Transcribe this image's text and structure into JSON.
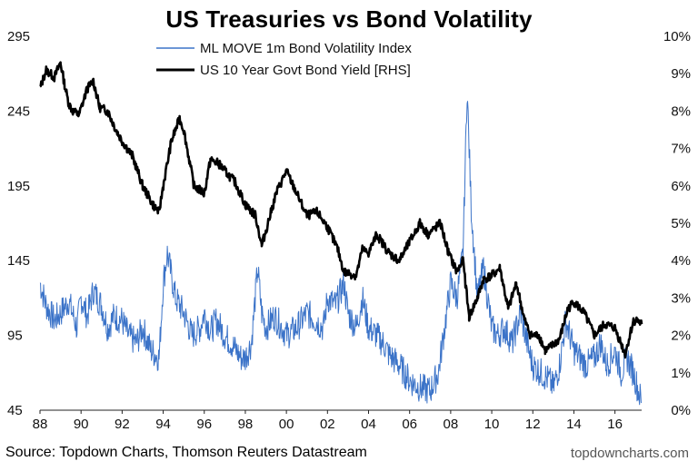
{
  "chart_data": {
    "type": "line",
    "title": "US Treasuries vs Bond Volatility",
    "x_ticks": [
      "88",
      "90",
      "92",
      "94",
      "96",
      "98",
      "00",
      "02",
      "04",
      "06",
      "08",
      "10",
      "12",
      "14",
      "16"
    ],
    "x_range": [
      1988,
      2017.3
    ],
    "y_left": {
      "ticks": [
        "295",
        "245",
        "195",
        "145",
        "95",
        "45"
      ],
      "range": [
        45,
        295
      ]
    },
    "y_right": {
      "ticks": [
        "10%",
        "9%",
        "8%",
        "7%",
        "6%",
        "5%",
        "4%",
        "3%",
        "2%",
        "1%",
        "0%"
      ],
      "range": [
        0,
        10
      ]
    },
    "grid": false,
    "legend_position": "top-center",
    "series": [
      {
        "name": "ML MOVE 1m Bond Volatility Index",
        "axis": "left",
        "color": "#3b73c8",
        "x": [
          1988.0,
          1988.3,
          1988.7,
          1989.0,
          1989.4,
          1989.8,
          1990.0,
          1990.3,
          1990.6,
          1991.0,
          1991.3,
          1991.6,
          1992.0,
          1992.3,
          1992.7,
          1993.0,
          1993.4,
          1993.8,
          1994.0,
          1994.2,
          1994.6,
          1995.0,
          1995.4,
          1995.8,
          1996.0,
          1996.3,
          1996.6,
          1997.0,
          1997.4,
          1997.8,
          1998.0,
          1998.3,
          1998.6,
          1998.8,
          1999.0,
          1999.4,
          1999.8,
          2000.0,
          2000.5,
          2001.0,
          2001.4,
          2001.8,
          2002.0,
          2002.4,
          2002.8,
          2003.0,
          2003.4,
          2003.7,
          2004.0,
          2004.4,
          2004.8,
          2005.0,
          2005.5,
          2006.0,
          2006.5,
          2007.0,
          2007.4,
          2007.7,
          2008.0,
          2008.3,
          2008.6,
          2008.8,
          2009.0,
          2009.3,
          2009.6,
          2010.0,
          2010.3,
          2010.6,
          2011.0,
          2011.4,
          2011.8,
          2012.0,
          2012.4,
          2012.8,
          2013.0,
          2013.3,
          2013.6,
          2013.9,
          2014.0,
          2014.3,
          2014.6,
          2015.0,
          2015.3,
          2015.6,
          2016.0,
          2016.3,
          2016.6,
          2016.9,
          2017.1,
          2017.3
        ],
        "values": [
          130,
          115,
          105,
          110,
          118,
          100,
          120,
          108,
          125,
          115,
          100,
          108,
          105,
          95,
          90,
          100,
          85,
          80,
          130,
          150,
          120,
          110,
          95,
          100,
          110,
          98,
          105,
          95,
          88,
          80,
          80,
          90,
          140,
          110,
          100,
          108,
          100,
          95,
          100,
          110,
          105,
          100,
          120,
          115,
          130,
          110,
          100,
          120,
          100,
          95,
          88,
          82,
          75,
          65,
          60,
          58,
          70,
          100,
          130,
          120,
          150,
          260,
          180,
          120,
          140,
          100,
          95,
          100,
          90,
          110,
          85,
          75,
          70,
          65,
          60,
          75,
          105,
          90,
          85,
          80,
          75,
          80,
          90,
          75,
          85,
          70,
          80,
          70,
          60,
          50
        ]
      },
      {
        "name": "US 10 Year Govt Bond Yield [RHS]",
        "axis": "right",
        "color": "#000000",
        "x": [
          1988.0,
          1988.3,
          1988.7,
          1989.0,
          1989.2,
          1989.4,
          1989.6,
          1989.9,
          1990.3,
          1990.6,
          1990.9,
          1991.3,
          1991.7,
          1992.0,
          1992.5,
          1993.0,
          1993.5,
          1993.8,
          1994.0,
          1994.4,
          1994.8,
          1995.0,
          1995.5,
          1996.0,
          1996.3,
          1996.7,
          1997.0,
          1997.5,
          1998.0,
          1998.5,
          1998.8,
          1999.0,
          1999.5,
          2000.0,
          2000.5,
          2001.0,
          2001.5,
          2002.0,
          2002.5,
          2002.8,
          2003.4,
          2003.7,
          2004.0,
          2004.4,
          2005.0,
          2005.5,
          2006.0,
          2006.5,
          2006.9,
          2007.5,
          2007.9,
          2008.3,
          2008.6,
          2008.9,
          2009.3,
          2009.6,
          2010.0,
          2010.4,
          2010.8,
          2011.2,
          2011.6,
          2011.9,
          2012.3,
          2012.6,
          2012.9,
          2013.3,
          2013.7,
          2014.0,
          2014.5,
          2015.0,
          2015.5,
          2016.0,
          2016.5,
          2016.9,
          2017.1,
          2017.3
        ],
        "values": [
          8.6,
          9.1,
          8.9,
          9.3,
          8.7,
          8.2,
          8.0,
          7.9,
          8.6,
          8.8,
          8.1,
          8.0,
          7.5,
          7.2,
          6.8,
          6.0,
          5.5,
          5.3,
          6.0,
          7.2,
          7.8,
          7.5,
          6.0,
          5.8,
          6.7,
          6.6,
          6.4,
          6.1,
          5.5,
          5.2,
          4.4,
          4.8,
          5.8,
          6.4,
          5.8,
          5.2,
          5.3,
          4.9,
          4.3,
          3.7,
          3.6,
          4.3,
          4.2,
          4.7,
          4.2,
          4.0,
          4.5,
          5.0,
          4.7,
          5.0,
          4.2,
          3.7,
          4.0,
          2.5,
          3.0,
          3.5,
          3.6,
          3.8,
          2.7,
          3.4,
          2.4,
          2.0,
          2.0,
          1.6,
          1.7,
          1.9,
          2.7,
          2.9,
          2.6,
          2.0,
          2.3,
          2.2,
          1.5,
          2.4,
          2.4,
          2.3
        ]
      }
    ]
  },
  "footer": {
    "source": "Source: Topdown Charts, Thomson Reuters Datastream",
    "brand": "topdowncharts.com"
  }
}
